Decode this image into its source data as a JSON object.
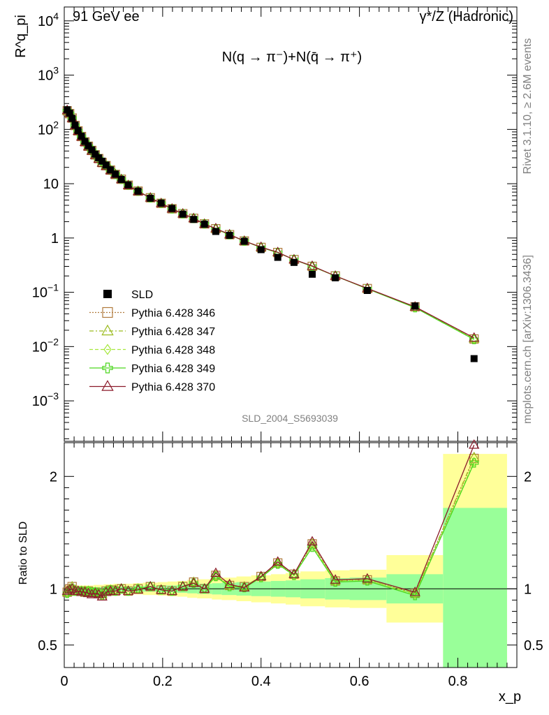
{
  "header": {
    "left": "91 GeV ee",
    "right": "γ*/Z (Hadronic)"
  },
  "side_label_top": "Rivet 3.1.10, ≥ 2.6M events",
  "side_label_bottom": "mcplots.cern.ch [arXiv:1306.3436]",
  "analysis_id": "SLD_2004_S5693039",
  "chart_data": [
    {
      "type": "scatter",
      "panel": "main",
      "title": "N(q → π⁻)+N(q̄ → π⁺)",
      "ylabel": "R^q_pi",
      "yscale": "log",
      "ylim": [
        0.00018,
        18000
      ],
      "xlim": [
        0,
        0.92
      ],
      "y_ticks": [
        {
          "v": 10000,
          "label": "10^4"
        },
        {
          "v": 1000,
          "label": "10^3"
        },
        {
          "v": 100,
          "label": "10^2"
        },
        {
          "v": 10,
          "label": "10"
        },
        {
          "v": 1,
          "label": "1"
        },
        {
          "v": 0.1,
          "label": "10^-1"
        },
        {
          "v": 0.01,
          "label": "10^-2"
        },
        {
          "v": 0.001,
          "label": "10^-3"
        }
      ],
      "legend": "left-center",
      "x": [
        0.006,
        0.011,
        0.016,
        0.022,
        0.028,
        0.035,
        0.042,
        0.049,
        0.056,
        0.063,
        0.07,
        0.077,
        0.085,
        0.094,
        0.104,
        0.116,
        0.13,
        0.15,
        0.175,
        0.197,
        0.219,
        0.241,
        0.263,
        0.285,
        0.308,
        0.336,
        0.366,
        0.4,
        0.434,
        0.467,
        0.504,
        0.551,
        0.616,
        0.713,
        0.833
      ],
      "series": [
        {
          "name": "SLD",
          "marker": "filled-square",
          "color": "#000000",
          "values": [
            230,
            200,
            160,
            120,
            95,
            75,
            60,
            50,
            42,
            35,
            30,
            26,
            22,
            18,
            15,
            12,
            9.5,
            7.3,
            5.4,
            4.4,
            3.5,
            2.75,
            2.2,
            1.8,
            1.32,
            1.12,
            0.87,
            0.61,
            0.44,
            0.355,
            0.215,
            0.185,
            0.108,
            0.056,
            0.006
          ]
        },
        {
          "name": "Pythia 6.428 346",
          "marker": "open-square",
          "color": "#b07a3c",
          "dash": "2,2",
          "values": [
            220,
            195,
            162,
            118,
            94,
            74,
            59,
            49,
            41,
            34,
            29,
            24.5,
            21.5,
            17.8,
            14.8,
            12.1,
            9.4,
            7.3,
            5.5,
            4.35,
            3.45,
            2.8,
            2.3,
            1.82,
            1.48,
            1.15,
            0.88,
            0.67,
            0.54,
            0.4,
            0.3,
            0.2,
            0.117,
            0.054,
            0.0138
          ]
        },
        {
          "name": "Pythia 6.428 347",
          "marker": "open-triangle",
          "color": "#9bbb1e",
          "dash": "6,3,2,3",
          "values": [
            222,
            196,
            161,
            119,
            94,
            74,
            59,
            49,
            41,
            34,
            29,
            24.6,
            21.6,
            17.9,
            14.9,
            12.1,
            9.4,
            7.3,
            5.5,
            4.36,
            3.45,
            2.8,
            2.3,
            1.82,
            1.48,
            1.15,
            0.88,
            0.67,
            0.54,
            0.4,
            0.3,
            0.2,
            0.117,
            0.054,
            0.0139
          ]
        },
        {
          "name": "Pythia 6.428 348",
          "marker": "open-diamond",
          "color": "#a6e83c",
          "dash": "5,3",
          "values": [
            221,
            195,
            161,
            118,
            94,
            74,
            59,
            49,
            41,
            34,
            29,
            24.5,
            21.5,
            17.8,
            14.8,
            12.1,
            9.4,
            7.3,
            5.5,
            4.35,
            3.45,
            2.8,
            2.3,
            1.82,
            1.47,
            1.15,
            0.88,
            0.67,
            0.54,
            0.4,
            0.3,
            0.2,
            0.117,
            0.053,
            0.0137
          ]
        },
        {
          "name": "Pythia 6.428 349",
          "marker": "open-cross",
          "color": "#4cd61e",
          "dash": "",
          "values": [
            221,
            196,
            161,
            118,
            94,
            74,
            59,
            49,
            41,
            34,
            29,
            24.5,
            21.5,
            17.8,
            14.8,
            12.1,
            9.4,
            7.3,
            5.5,
            4.35,
            3.45,
            2.8,
            2.3,
            1.82,
            1.47,
            1.15,
            0.88,
            0.67,
            0.54,
            0.4,
            0.3,
            0.2,
            0.116,
            0.052,
            0.0135
          ]
        },
        {
          "name": "Pythia 6.428 370",
          "marker": "open-triangle",
          "color": "#8b1a2a",
          "dash": "",
          "values": [
            225,
            198,
            160,
            118,
            93,
            73,
            58,
            48,
            40,
            33.5,
            28.5,
            24,
            21,
            17.5,
            14.7,
            12,
            9.3,
            7.2,
            5.5,
            4.35,
            3.45,
            2.8,
            2.3,
            1.8,
            1.5,
            1.16,
            0.88,
            0.68,
            0.545,
            0.4,
            0.305,
            0.2,
            0.118,
            0.054,
            0.0145
          ]
        }
      ]
    },
    {
      "type": "line",
      "panel": "ratio",
      "ylabel": "Ratio to SLD",
      "xlabel": "x_p",
      "ylim": [
        0.3,
        2.3
      ],
      "xlim": [
        0,
        0.92
      ],
      "x_ticks": [
        {
          "v": 0,
          "label": "0"
        },
        {
          "v": 0.2,
          "label": "0.2"
        },
        {
          "v": 0.4,
          "label": "0.4"
        },
        {
          "v": 0.6,
          "label": "0.6"
        },
        {
          "v": 0.8,
          "label": "0.8"
        }
      ],
      "y_ticks": [
        {
          "v": 0.5,
          "label": "0.5"
        },
        {
          "v": 1,
          "label": "1"
        },
        {
          "v": 2,
          "label": "2"
        }
      ],
      "bands": {
        "edges": [
          0.0,
          0.02,
          0.04,
          0.06,
          0.08,
          0.1,
          0.12,
          0.14,
          0.16,
          0.19,
          0.21,
          0.23,
          0.25,
          0.27,
          0.3,
          0.32,
          0.35,
          0.38,
          0.42,
          0.45,
          0.48,
          0.53,
          0.58,
          0.655,
          0.77,
          0.9
        ],
        "green_low": [
          0.985,
          0.985,
          0.985,
          0.985,
          0.98,
          0.98,
          0.98,
          0.975,
          0.975,
          0.97,
          0.97,
          0.965,
          0.96,
          0.955,
          0.95,
          0.945,
          0.94,
          0.935,
          0.93,
          0.925,
          0.915,
          0.905,
          0.9,
          0.87,
          0.0
        ],
        "green_high": [
          1.015,
          1.015,
          1.015,
          1.015,
          1.02,
          1.02,
          1.02,
          1.025,
          1.025,
          1.03,
          1.03,
          1.035,
          1.04,
          1.045,
          1.05,
          1.055,
          1.06,
          1.065,
          1.07,
          1.075,
          1.085,
          1.095,
          1.1,
          1.13,
          1.72
        ],
        "yellow_low": [
          0.97,
          0.97,
          0.97,
          0.965,
          0.96,
          0.955,
          0.955,
          0.95,
          0.945,
          0.94,
          0.935,
          0.93,
          0.92,
          0.915,
          0.905,
          0.9,
          0.89,
          0.88,
          0.87,
          0.86,
          0.845,
          0.835,
          0.83,
          0.7,
          0.0
        ],
        "yellow_high": [
          1.03,
          1.03,
          1.03,
          1.035,
          1.04,
          1.045,
          1.045,
          1.05,
          1.055,
          1.06,
          1.065,
          1.07,
          1.08,
          1.085,
          1.095,
          1.1,
          1.11,
          1.12,
          1.13,
          1.14,
          1.155,
          1.165,
          1.17,
          1.3,
          2.2
        ]
      },
      "series_ratio": [
        {
          "name": "Pythia 6.428 346",
          "values": [
            0.97,
            1.0,
            1.02,
            0.98,
            0.98,
            0.98,
            0.97,
            0.98,
            0.97,
            0.97,
            0.96,
            0.94,
            0.98,
            0.99,
            0.98,
            1.0,
            0.98,
            1.0,
            1.02,
            0.99,
            0.98,
            1.02,
            1.06,
            1.0,
            1.12,
            1.03,
            1.02,
            1.11,
            1.23,
            1.13,
            1.4,
            1.07,
            1.08,
            0.96,
            2.16
          ]
        },
        {
          "name": "Pythia 6.428 347",
          "values": [
            0.97,
            1.0,
            1.02,
            0.99,
            0.98,
            0.98,
            0.98,
            0.98,
            0.97,
            0.97,
            0.96,
            0.95,
            0.98,
            0.99,
            0.99,
            1.0,
            0.98,
            1.0,
            1.02,
            0.99,
            0.98,
            1.02,
            1.06,
            1.0,
            1.12,
            1.03,
            1.02,
            1.11,
            1.23,
            1.13,
            1.4,
            1.07,
            1.08,
            0.96,
            2.17
          ]
        },
        {
          "name": "Pythia 6.428 348",
          "values": [
            0.96,
            0.98,
            1.0,
            0.98,
            0.98,
            0.98,
            0.97,
            0.98,
            0.97,
            0.97,
            0.96,
            0.94,
            0.98,
            0.99,
            0.98,
            1.0,
            0.98,
            1.0,
            1.02,
            0.99,
            0.98,
            1.02,
            1.05,
            1.0,
            1.11,
            1.03,
            1.01,
            1.1,
            1.22,
            1.12,
            1.38,
            1.07,
            1.08,
            0.95,
            2.13
          ]
        },
        {
          "name": "Pythia 6.428 349",
          "values": [
            0.96,
            0.98,
            1.0,
            0.98,
            0.98,
            0.98,
            0.97,
            0.98,
            0.97,
            0.97,
            0.96,
            0.94,
            0.98,
            0.99,
            0.98,
            1.0,
            0.98,
            1.0,
            1.02,
            0.99,
            0.98,
            1.02,
            1.05,
            1.0,
            1.11,
            1.02,
            1.01,
            1.1,
            1.22,
            1.12,
            1.37,
            1.06,
            1.07,
            0.94,
            2.12
          ]
        },
        {
          "name": "Pythia 6.428 370",
          "values": [
            0.98,
            0.99,
            1.0,
            0.98,
            0.98,
            0.97,
            0.97,
            0.96,
            0.95,
            0.96,
            0.95,
            0.93,
            0.97,
            0.98,
            0.98,
            1.0,
            0.98,
            0.99,
            1.02,
            0.99,
            0.98,
            1.02,
            1.05,
            1.0,
            1.14,
            1.04,
            1.01,
            1.11,
            1.24,
            1.13,
            1.42,
            1.08,
            1.09,
            0.97,
            2.28
          ]
        }
      ]
    }
  ]
}
